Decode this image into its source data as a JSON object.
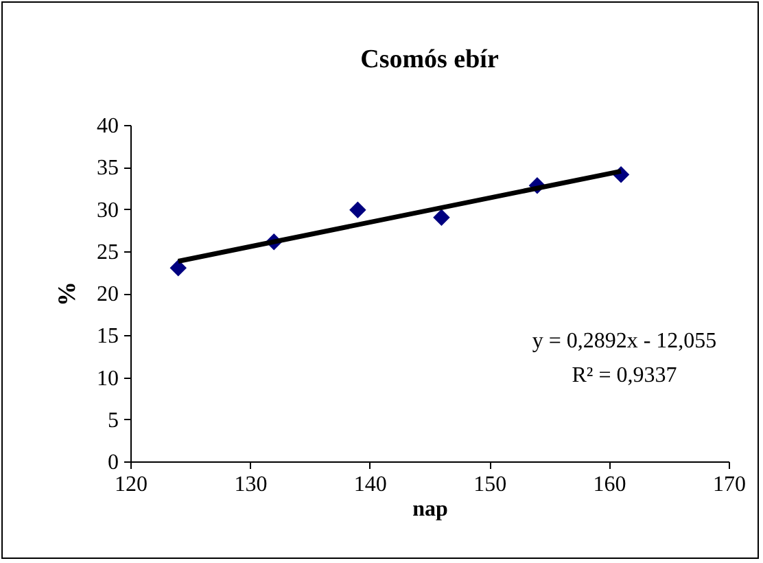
{
  "chart_data": {
    "type": "scatter",
    "title": "Csomós ebír",
    "xlabel": "nap",
    "ylabel": "%",
    "xlim": [
      120,
      170
    ],
    "xticks": [
      120,
      130,
      140,
      150,
      160,
      170
    ],
    "ylim": [
      0,
      40
    ],
    "yticks": [
      0,
      5,
      10,
      15,
      20,
      25,
      30,
      35,
      40
    ],
    "grid": false,
    "marker": "diamond",
    "series": [
      {
        "type": "scatter",
        "color": "#000080",
        "x": [
          124,
          132,
          139,
          146,
          154,
          161
        ],
        "values": [
          23,
          26.1,
          29.9,
          29,
          32.8,
          34.1
        ]
      },
      {
        "type": "line",
        "color": "#000000",
        "line_style": "solid",
        "marker": "none",
        "x": [
          124,
          161
        ],
        "values": [
          23.8,
          34.5
        ]
      }
    ],
    "annotations": [
      "y = 0,2892x - 12,055",
      "R² = 0,9337"
    ]
  }
}
